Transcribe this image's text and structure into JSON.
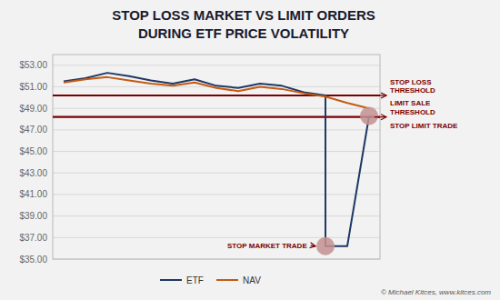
{
  "chart_data": {
    "type": "line",
    "title": "STOP LOSS MARKET VS LIMIT ORDERS",
    "subtitle": "DURING ETF PRICE VOLATILITY",
    "series": [
      {
        "name": "ETF",
        "color": "#1f3864",
        "x": [
          0,
          1,
          2,
          3,
          4,
          5,
          6,
          7,
          8,
          9,
          10,
          11,
          12,
          12,
          13,
          14
        ],
        "values": [
          51.5,
          51.8,
          52.3,
          52.0,
          51.6,
          51.3,
          51.7,
          51.1,
          50.9,
          51.3,
          51.1,
          50.5,
          50.2,
          36.2,
          36.2,
          48.3
        ]
      },
      {
        "name": "NAV",
        "color": "#c55a11",
        "x": [
          0,
          1,
          2,
          3,
          4,
          5,
          6,
          7,
          8,
          9,
          10,
          11,
          12,
          13,
          14
        ],
        "values": [
          51.4,
          51.7,
          51.9,
          51.6,
          51.3,
          51.1,
          51.4,
          50.9,
          50.6,
          51.0,
          50.8,
          50.4,
          50.1,
          49.5,
          49.0
        ]
      }
    ],
    "xlim": [
      -0.5,
      14.5
    ],
    "ylim": [
      35.0,
      54.0
    ],
    "yticks": [
      {
        "value": 35.0,
        "label": "$35.00"
      },
      {
        "value": 37.0,
        "label": "$37.00"
      },
      {
        "value": 39.0,
        "label": "$39.00"
      },
      {
        "value": 41.0,
        "label": "$41.00"
      },
      {
        "value": 43.0,
        "label": "$43.00"
      },
      {
        "value": 45.0,
        "label": "$45.00"
      },
      {
        "value": 47.0,
        "label": "$47.00"
      },
      {
        "value": 49.0,
        "label": "$49.00"
      },
      {
        "value": 51.0,
        "label": "$51.00"
      },
      {
        "value": 53.0,
        "label": "$53.00"
      }
    ],
    "tick_labels": "y",
    "grid": true,
    "legend": "bottom",
    "thresholds": [
      {
        "label": "STOP LOSS\nTHRESHOLD",
        "value": 50.2,
        "color": "#7b0000"
      },
      {
        "label": "LIMIT SALE\nTHRESHOLD",
        "value": 48.2,
        "color": "#7b0000"
      }
    ],
    "markers": [
      {
        "label": "STOP MARKET TRADE",
        "x": 12,
        "y": 36.2,
        "color": "#c49090",
        "label_color": "#7b0000"
      },
      {
        "label": "STOP LIMIT TRADE",
        "x": 14,
        "y": 48.3,
        "color": "#c49090",
        "label_color": "#7b0000"
      }
    ],
    "annotations": [
      "© Michael Kitces, www.kitces.com"
    ]
  }
}
